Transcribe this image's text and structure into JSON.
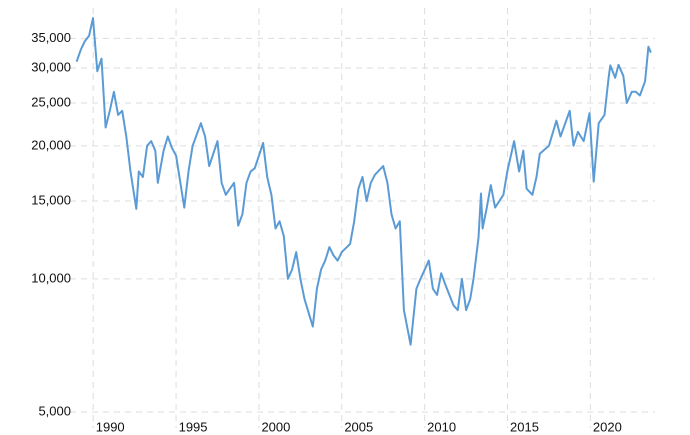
{
  "chart_data": {
    "type": "line",
    "log_scale": true,
    "grid": true,
    "xlim": [
      1988.6,
      2023.9
    ],
    "xticks": [
      1990,
      1995,
      2000,
      2005,
      2010,
      2015,
      2020
    ],
    "ylim": [
      4600,
      41000
    ],
    "yticks": [
      {
        "value": 5000,
        "label": "5,000"
      },
      {
        "value": 10000,
        "label": "10,000"
      },
      {
        "value": 15000,
        "label": "15,000"
      },
      {
        "value": 20000,
        "label": "20,000"
      },
      {
        "value": 25000,
        "label": "25,000"
      },
      {
        "value": 30000,
        "label": "30,000"
      },
      {
        "value": 35000,
        "label": "35,000"
      }
    ],
    "x": [
      1989.0,
      1989.25,
      1989.5,
      1989.75,
      1989.99,
      1990.25,
      1990.5,
      1990.75,
      1991.0,
      1991.25,
      1991.5,
      1991.75,
      1992.0,
      1992.25,
      1992.6,
      1992.75,
      1993.0,
      1993.25,
      1993.5,
      1993.75,
      1993.9,
      1994.25,
      1994.5,
      1994.75,
      1995.0,
      1995.5,
      1995.75,
      1996.0,
      1996.5,
      1996.75,
      1997.0,
      1997.5,
      1997.75,
      1998.0,
      1998.25,
      1998.5,
      1998.75,
      1999.0,
      1999.25,
      1999.5,
      1999.75,
      2000.25,
      2000.5,
      2000.75,
      2001.0,
      2001.25,
      2001.5,
      2001.75,
      2002.0,
      2002.25,
      2002.5,
      2002.75,
      2003.25,
      2003.5,
      2003.75,
      2004.0,
      2004.25,
      2004.5,
      2004.75,
      2005.0,
      2005.5,
      2005.75,
      2006.0,
      2006.25,
      2006.5,
      2006.75,
      2007.0,
      2007.5,
      2007.75,
      2008.0,
      2008.25,
      2008.5,
      2008.75,
      2009.15,
      2009.5,
      2009.75,
      2010.25,
      2010.5,
      2010.75,
      2011.0,
      2011.25,
      2011.75,
      2012.0,
      2012.25,
      2012.5,
      2012.75,
      2012.95,
      2013.25,
      2013.4,
      2013.5,
      2013.75,
      2013.99,
      2014.25,
      2014.75,
      2014.99,
      2015.4,
      2015.7,
      2015.95,
      2016.15,
      2016.5,
      2016.75,
      2016.95,
      2017.5,
      2017.95,
      2018.2,
      2018.75,
      2018.98,
      2019.25,
      2019.6,
      2019.95,
      2020.2,
      2020.5,
      2020.85,
      2021.1,
      2021.2,
      2021.5,
      2021.7,
      2021.99,
      2022.2,
      2022.5,
      2022.75,
      2022.99,
      2023.3,
      2023.5,
      2023.65
    ],
    "series": [
      {
        "color": "#5b9bd5",
        "values": [
          31000,
          33000,
          34500,
          35500,
          38900,
          29500,
          31500,
          22000,
          24000,
          26500,
          23500,
          24000,
          21000,
          17500,
          14400,
          17500,
          17000,
          20000,
          20500,
          19500,
          16500,
          19500,
          21000,
          19800,
          19000,
          14500,
          17500,
          20000,
          22500,
          21000,
          18000,
          20500,
          16500,
          15500,
          16000,
          16500,
          13200,
          14000,
          16500,
          17500,
          17800,
          20300,
          17000,
          15500,
          13000,
          13500,
          12500,
          10000,
          10500,
          11500,
          10000,
          9000,
          7800,
          9500,
          10500,
          11000,
          11800,
          11300,
          11000,
          11500,
          12000,
          13500,
          16000,
          17000,
          15000,
          16500,
          17200,
          18000,
          16500,
          14000,
          13000,
          13500,
          8500,
          7100,
          9500,
          10000,
          11000,
          9500,
          9200,
          10300,
          9700,
          8700,
          8500,
          10000,
          8500,
          9000,
          10000,
          12400,
          15600,
          13000,
          14500,
          16300,
          14500,
          15500,
          17500,
          20500,
          17500,
          19500,
          16000,
          15500,
          17000,
          19200,
          20000,
          22800,
          21000,
          24000,
          20000,
          21500,
          20500,
          23700,
          16600,
          22500,
          23500,
          28500,
          30400,
          28500,
          30500,
          28800,
          25000,
          26500,
          26500,
          26000,
          28000,
          33500,
          32500
        ]
      }
    ]
  }
}
